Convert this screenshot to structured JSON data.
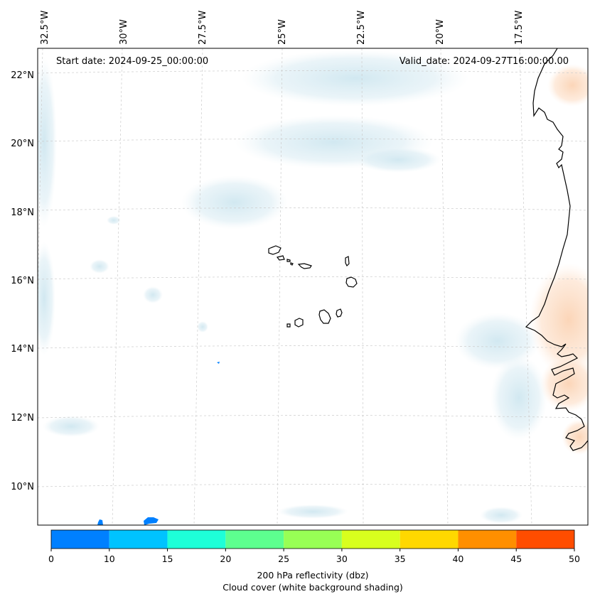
{
  "header": {
    "start_date": "Start date: 2024-09-25_00:00:00",
    "valid_date": "Valid_date: 2024-09-27T16:00:00.00"
  },
  "longitude_labels": [
    "32.5°W",
    "30°W",
    "27.5°W",
    "25°W",
    "22.5°W",
    "20°W",
    "17.5°W"
  ],
  "latitude_labels": [
    "22°N",
    "20°N",
    "18°N",
    "16°N",
    "14°N",
    "12°N",
    "10°N"
  ],
  "colorbar": {
    "ticks": [
      "0",
      "10",
      "15",
      "20",
      "25",
      "30",
      "35",
      "40",
      "45",
      "50"
    ],
    "colors": [
      "#0080ff",
      "#00c3ff",
      "#1effd8",
      "#5dff8f",
      "#98ff55",
      "#d8ff1e",
      "#ffd800",
      "#ff8f00",
      "#ff4d00"
    ],
    "label_line1": "200 hPa reflectivity (dbz)",
    "label_line2": "Cloud cover (white background shading)"
  },
  "styling": {
    "coastline_color": "#000000",
    "gridline_color": "#cccccc",
    "cloud_color": "#d6ebf2",
    "warm_shading_color": "#fde0c8"
  }
}
